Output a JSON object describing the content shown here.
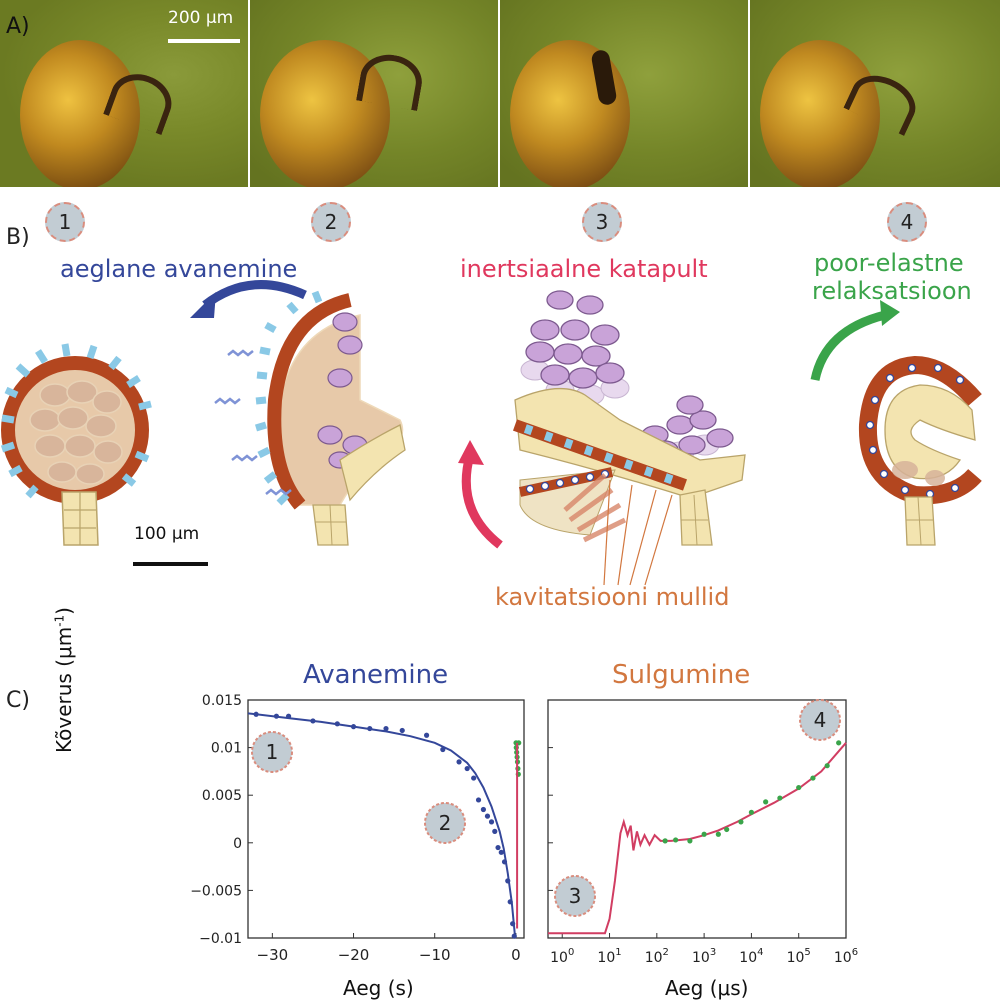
{
  "panel_a": {
    "label": "A)",
    "scalebar_label": "200 μm"
  },
  "panel_b": {
    "label": "B)",
    "steps": [
      "1",
      "2",
      "3",
      "4"
    ],
    "labels": {
      "slow_opening": "aeglane avanemine",
      "inertial_catapult": "inertsiaalne katapult",
      "poroelastic_line1": "poor-elastne",
      "poroelastic_line2": "relaksatsioon",
      "cavitation_bubbles": "kavitatsiooni mullid"
    },
    "scalebar_label": "100 μm",
    "colors": {
      "blue": "#34479a",
      "red": "#e0385e",
      "green": "#3aa44a",
      "orange": "#d2773f",
      "ring": "#b3461f",
      "cell_fill": "#f3e4b0",
      "spore": "#c9a3d8"
    }
  },
  "panel_c": {
    "label": "C)",
    "ylabel": "Kõverus (μm",
    "ylabel_sup": "-1",
    "ylabel_end": ")",
    "left_title": "Avanemine",
    "right_title": "Sulgumine",
    "left_xlabel": "Aeg (s)",
    "right_xlabel": "Aeg (μs)",
    "badges": [
      "1",
      "2",
      "3",
      "4"
    ],
    "left_ticks_x": [
      "−30",
      "−20",
      "−10",
      "0"
    ],
    "left_ticks_y": [
      "0.015",
      "0.01",
      "0.005",
      "0",
      "−0.005",
      "−0.01"
    ],
    "right_ticks_x": [
      {
        "base": "10",
        "exp": "0"
      },
      {
        "base": "10",
        "exp": "1"
      },
      {
        "base": "10",
        "exp": "2"
      },
      {
        "base": "10",
        "exp": "3"
      },
      {
        "base": "10",
        "exp": "4"
      },
      {
        "base": "10",
        "exp": "5"
      },
      {
        "base": "10",
        "exp": "6"
      }
    ]
  },
  "chart_data": [
    {
      "type": "scatter",
      "title": "Avanemine",
      "xlabel": "Aeg (s)",
      "ylabel": "Kõverus (μm-1)",
      "xlim": [
        -33,
        1
      ],
      "ylim": [
        -0.01,
        0.015
      ],
      "series": [
        {
          "color": "#34479a",
          "x": [
            -32,
            -29.5,
            -28,
            -25,
            -22,
            -20,
            -18,
            -16,
            -14,
            -11,
            -9,
            -7,
            -6,
            -5.2,
            -4.6,
            -4,
            -3.5,
            -3,
            -2.6,
            -2.2,
            -1.8,
            -1.4,
            -1,
            -0.7,
            -0.4,
            -0.2
          ],
          "y": [
            0.0135,
            0.0133,
            0.0133,
            0.0128,
            0.0125,
            0.0122,
            0.012,
            0.012,
            0.0118,
            0.0113,
            0.0098,
            0.0085,
            0.0078,
            0.0068,
            0.0045,
            0.0035,
            0.0028,
            0.0022,
            0.0012,
            -0.0005,
            -0.001,
            -0.002,
            -0.004,
            -0.0062,
            -0.0085,
            -0.0098
          ]
        },
        {
          "color": "#3aa44a",
          "x": [
            0.02,
            0.05,
            0.1,
            0.15,
            0.2,
            0.25,
            0.3,
            0.35
          ],
          "y": [
            0.0105,
            0.01,
            0.0095,
            0.009,
            0.0085,
            0.0078,
            0.0072,
            0.0105
          ]
        }
      ],
      "fit_line": {
        "color": "#34479a",
        "x": [
          -33,
          -28,
          -24,
          -20,
          -16,
          -13,
          -10,
          -8,
          -6,
          -5,
          -4,
          -3,
          -2,
          -1.5,
          -1,
          -0.5,
          -0.1
        ],
        "y": [
          0.0136,
          0.0131,
          0.0127,
          0.0122,
          0.0117,
          0.0112,
          0.0105,
          0.0097,
          0.0084,
          0.0073,
          0.0058,
          0.0038,
          0.0012,
          -0.0006,
          -0.0032,
          -0.0063,
          -0.0099
        ]
      }
    },
    {
      "type": "line",
      "title": "Sulgumine",
      "xlabel": "Aeg (μs)",
      "log_x": true,
      "xlim": [
        0.5,
        1000000
      ],
      "ylim": [
        -0.01,
        0.015
      ],
      "series": [
        {
          "color": "#3aa44a",
          "x": [
            150,
            250,
            500,
            1000,
            2000,
            3000,
            6000,
            10000,
            20000,
            40000,
            100000,
            200000,
            400000,
            700000
          ],
          "y": [
            0.0002,
            0.0003,
            0.0002,
            0.0009,
            0.0009,
            0.0014,
            0.0022,
            0.0032,
            0.0043,
            0.0047,
            0.0058,
            0.0068,
            0.0081,
            0.0105
          ]
        }
      ],
      "fit_line": {
        "color": "#d13d62",
        "x": [
          0.5,
          8,
          10,
          13,
          17,
          20,
          24,
          28,
          32,
          38,
          45,
          55,
          70,
          90,
          120,
          200,
          500,
          1000,
          2000,
          5000,
          10000,
          30000,
          100000,
          300000,
          1000000
        ],
        "y": [
          -0.0095,
          -0.0095,
          -0.008,
          -0.004,
          0.001,
          0.0022,
          0.0008,
          0.0018,
          -0.0008,
          0.0012,
          -0.0002,
          0.0008,
          -0.0002,
          0.0008,
          0.0002,
          0.0002,
          0.0004,
          0.0008,
          0.0013,
          0.0022,
          0.003,
          0.0042,
          0.0057,
          0.0075,
          0.0105
        ]
      }
    }
  ]
}
